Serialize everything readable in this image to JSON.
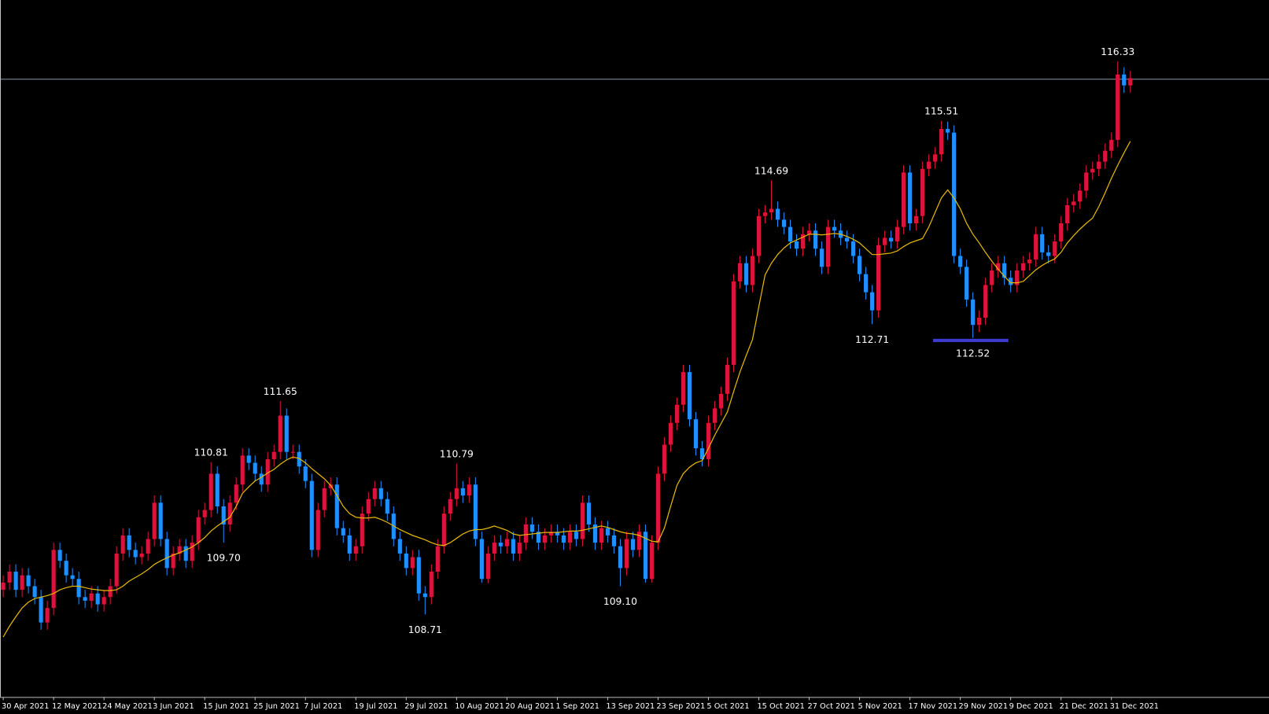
{
  "chart_data": {
    "type": "candlestick",
    "ylim": [
      107.573,
      117.177
    ],
    "up_color": "#dc143c",
    "down_color": "#1e90ff",
    "categories": [
      "30 Apr 2021",
      null,
      null,
      null,
      null,
      null,
      null,
      null,
      "12 May 2021",
      null,
      null,
      null,
      null,
      null,
      null,
      null,
      "24 May 2021",
      null,
      null,
      null,
      null,
      null,
      null,
      null,
      "3 Jun 2021",
      null,
      null,
      null,
      null,
      null,
      null,
      null,
      "15 Jun 2021",
      null,
      null,
      null,
      null,
      null,
      null,
      null,
      "25 Jun 2021",
      null,
      null,
      null,
      null,
      null,
      null,
      null,
      "7 Jul 2021",
      null,
      null,
      null,
      null,
      null,
      null,
      null,
      "19 Jul 2021",
      null,
      null,
      null,
      null,
      null,
      null,
      null,
      "29 Jul 2021",
      null,
      null,
      null,
      null,
      null,
      null,
      null,
      "10 Aug 2021",
      null,
      null,
      null,
      null,
      null,
      null,
      null,
      "20 Aug 2021",
      null,
      null,
      null,
      null,
      null,
      null,
      null,
      "1 Sep 2021",
      null,
      null,
      null,
      null,
      null,
      null,
      null,
      "13 Sep 2021",
      null,
      null,
      null,
      null,
      null,
      null,
      null,
      "23 Sep 2021",
      null,
      null,
      null,
      null,
      null,
      null,
      null,
      "5 Oct 2021",
      null,
      null,
      null,
      null,
      null,
      null,
      null,
      "15 Oct 2021",
      null,
      null,
      null,
      null,
      null,
      null,
      null,
      "27 Oct 2021",
      null,
      null,
      null,
      null,
      null,
      null,
      null,
      "5 Nov 2021",
      null,
      null,
      null,
      null,
      null,
      null,
      null,
      "17 Nov 2021",
      null,
      null,
      null,
      null,
      null,
      null,
      null,
      "29 Nov 2021",
      null,
      null,
      null,
      null,
      null,
      null,
      null,
      "9 Dec 2021",
      null,
      null,
      null,
      null,
      null,
      null,
      null,
      "21 Dec 2021",
      null,
      null,
      null,
      null,
      null,
      null,
      null,
      "31 Dec 2021",
      null,
      null,
      null
    ],
    "open": [
      109.05,
      109.15,
      109.3,
      109.05,
      109.25,
      109.1,
      108.95,
      108.6,
      108.8,
      109.6,
      109.45,
      109.25,
      109.2,
      108.95,
      108.9,
      109.0,
      108.85,
      108.95,
      109.1,
      109.55,
      109.8,
      109.6,
      109.5,
      109.55,
      109.75,
      110.25,
      109.75,
      109.35,
      109.55,
      109.65,
      109.45,
      109.7,
      110.05,
      110.15,
      110.65,
      110.2,
      109.95,
      110.25,
      110.5,
      110.9,
      110.8,
      110.65,
      110.5,
      110.85,
      110.95,
      111.45,
      110.95,
      110.95,
      110.75,
      110.55,
      109.6,
      110.15,
      110.45,
      110.5,
      109.9,
      109.8,
      109.55,
      109.65,
      110.1,
      110.3,
      110.45,
      110.3,
      110.1,
      109.75,
      109.55,
      109.35,
      109.5,
      109.0,
      108.95,
      109.3,
      109.65,
      110.1,
      110.3,
      110.45,
      110.35,
      110.5,
      109.75,
      109.2,
      109.55,
      109.7,
      109.65,
      109.75,
      109.55,
      109.7,
      109.95,
      109.85,
      109.7,
      109.8,
      109.85,
      109.8,
      109.7,
      109.85,
      109.75,
      110.25,
      109.95,
      109.7,
      109.9,
      109.8,
      109.65,
      109.35,
      109.75,
      109.6,
      109.85,
      109.2,
      109.7,
      110.65,
      111.05,
      111.35,
      111.6,
      112.05,
      111.4,
      111.0,
      110.85,
      111.35,
      111.55,
      111.75,
      112.15,
      113.3,
      113.55,
      113.25,
      113.65,
      114.2,
      114.25,
      114.3,
      114.15,
      114.05,
      113.85,
      113.75,
      113.95,
      114.0,
      113.75,
      113.5,
      114.05,
      114.0,
      113.9,
      113.85,
      113.65,
      113.4,
      113.15,
      112.9,
      113.8,
      113.9,
      113.85,
      114.05,
      114.8,
      114.1,
      114.2,
      114.85,
      114.95,
      115.05,
      115.4,
      115.35,
      113.65,
      113.5,
      113.05,
      112.7,
      112.8,
      113.25,
      113.45,
      113.55,
      113.35,
      113.25,
      113.45,
      113.55,
      113.6,
      113.95,
      113.7,
      113.65,
      113.85,
      114.1,
      114.35,
      114.4,
      114.55,
      114.8,
      114.85,
      114.95,
      115.1,
      115.25,
      116.15,
      116.0
    ],
    "high": [
      109.25,
      109.4,
      109.4,
      109.35,
      109.35,
      109.2,
      109.05,
      108.9,
      109.7,
      109.7,
      109.55,
      109.35,
      109.3,
      109.05,
      109.1,
      109.1,
      109.05,
      109.2,
      109.65,
      109.9,
      109.9,
      109.7,
      109.65,
      109.85,
      110.35,
      110.35,
      109.85,
      109.65,
      109.75,
      109.75,
      109.8,
      110.15,
      110.25,
      110.81,
      110.75,
      110.3,
      110.35,
      110.6,
      111.0,
      111.0,
      110.9,
      110.75,
      110.95,
      111.05,
      111.65,
      111.55,
      111.05,
      111.05,
      110.85,
      110.65,
      110.25,
      110.55,
      110.6,
      110.6,
      110.0,
      109.9,
      109.75,
      110.2,
      110.4,
      110.55,
      110.55,
      110.4,
      110.2,
      109.85,
      109.65,
      109.6,
      109.6,
      109.1,
      109.4,
      109.75,
      110.2,
      110.4,
      110.79,
      110.55,
      110.6,
      110.6,
      109.85,
      109.65,
      109.8,
      109.8,
      109.85,
      109.85,
      109.8,
      110.05,
      110.05,
      109.95,
      109.9,
      109.95,
      109.95,
      109.9,
      109.95,
      109.95,
      110.35,
      110.35,
      110.05,
      110.0,
      110.0,
      109.9,
      109.75,
      109.85,
      109.85,
      109.95,
      109.95,
      109.8,
      110.75,
      111.15,
      111.45,
      111.7,
      112.15,
      112.15,
      111.5,
      111.1,
      111.45,
      111.65,
      111.85,
      112.25,
      113.4,
      113.65,
      113.65,
      113.75,
      114.3,
      114.35,
      114.69,
      114.4,
      114.25,
      114.15,
      113.95,
      114.05,
      114.1,
      114.1,
      113.85,
      114.15,
      114.15,
      114.1,
      114.0,
      113.95,
      113.75,
      113.5,
      113.25,
      113.9,
      114.0,
      114.0,
      114.15,
      114.9,
      114.9,
      114.3,
      114.95,
      115.05,
      115.15,
      115.51,
      115.5,
      115.45,
      113.75,
      113.6,
      113.15,
      112.9,
      113.35,
      113.55,
      113.65,
      113.65,
      113.45,
      113.55,
      113.65,
      113.7,
      114.05,
      114.05,
      113.8,
      113.95,
      114.2,
      114.45,
      114.5,
      114.65,
      114.9,
      114.95,
      115.05,
      115.2,
      115.35,
      116.33,
      116.25,
      116.2
    ],
    "low": [
      108.95,
      109.05,
      108.95,
      108.95,
      109.0,
      108.85,
      108.5,
      108.5,
      108.7,
      109.35,
      109.15,
      109.1,
      108.85,
      108.8,
      108.8,
      108.75,
      108.75,
      108.85,
      109.0,
      109.45,
      109.5,
      109.4,
      109.4,
      109.45,
      109.65,
      109.65,
      109.25,
      109.25,
      109.45,
      109.35,
      109.35,
      109.6,
      109.95,
      110.05,
      110.1,
      109.7,
      109.85,
      110.15,
      110.4,
      110.7,
      110.55,
      110.4,
      110.4,
      110.75,
      110.85,
      110.85,
      110.85,
      110.65,
      110.45,
      109.5,
      109.5,
      110.05,
      110.35,
      109.8,
      109.7,
      109.45,
      109.45,
      109.55,
      110.0,
      110.2,
      110.2,
      110.0,
      109.65,
      109.45,
      109.25,
      109.25,
      108.9,
      108.71,
      108.85,
      109.2,
      109.55,
      110.0,
      110.2,
      110.25,
      110.25,
      109.65,
      109.15,
      109.14,
      109.45,
      109.55,
      109.55,
      109.45,
      109.45,
      109.6,
      109.75,
      109.6,
      109.6,
      109.7,
      109.7,
      109.6,
      109.6,
      109.65,
      109.65,
      109.85,
      109.6,
      109.6,
      109.7,
      109.55,
      109.1,
      109.25,
      109.5,
      109.5,
      109.15,
      109.15,
      109.6,
      110.55,
      110.95,
      111.25,
      111.5,
      111.3,
      110.9,
      110.75,
      110.75,
      111.25,
      111.45,
      111.65,
      112.05,
      113.2,
      113.15,
      113.15,
      113.55,
      114.1,
      114.15,
      114.05,
      113.95,
      113.75,
      113.65,
      113.65,
      113.85,
      113.65,
      113.4,
      113.4,
      113.9,
      113.8,
      113.75,
      113.55,
      113.3,
      113.05,
      112.71,
      112.8,
      113.7,
      113.75,
      113.75,
      113.95,
      114.0,
      114.0,
      114.1,
      114.75,
      114.85,
      114.95,
      115.25,
      113.55,
      113.4,
      112.95,
      112.52,
      112.6,
      112.7,
      113.15,
      113.35,
      113.25,
      113.15,
      113.15,
      113.35,
      113.45,
      113.5,
      113.6,
      113.55,
      113.55,
      113.75,
      114.0,
      114.25,
      114.3,
      114.45,
      114.7,
      114.75,
      114.85,
      115.0,
      115.15,
      115.9,
      115.9
    ],
    "close": [
      109.15,
      109.3,
      109.05,
      109.25,
      109.1,
      108.95,
      108.6,
      108.8,
      109.6,
      109.45,
      109.25,
      109.2,
      108.95,
      108.9,
      109.0,
      108.85,
      108.95,
      109.1,
      109.55,
      109.8,
      109.6,
      109.5,
      109.55,
      109.75,
      110.25,
      109.75,
      109.35,
      109.55,
      109.65,
      109.45,
      109.7,
      110.05,
      110.15,
      110.65,
      110.2,
      109.95,
      110.25,
      110.5,
      110.9,
      110.8,
      110.65,
      110.5,
      110.85,
      110.95,
      111.45,
      110.95,
      110.95,
      110.75,
      110.55,
      109.6,
      110.15,
      110.45,
      110.5,
      109.9,
      109.8,
      109.55,
      109.65,
      110.1,
      110.3,
      110.45,
      110.3,
      110.1,
      109.75,
      109.55,
      109.35,
      109.5,
      109.0,
      108.95,
      109.3,
      109.65,
      110.1,
      110.3,
      110.45,
      110.35,
      110.5,
      109.75,
      109.2,
      109.55,
      109.7,
      109.65,
      109.75,
      109.55,
      109.7,
      109.95,
      109.85,
      109.7,
      109.8,
      109.85,
      109.8,
      109.7,
      109.85,
      109.75,
      110.25,
      109.95,
      109.7,
      109.9,
      109.8,
      109.65,
      109.35,
      109.75,
      109.6,
      109.85,
      109.2,
      109.7,
      110.65,
      111.05,
      111.35,
      111.6,
      112.05,
      111.4,
      111.0,
      110.85,
      111.35,
      111.55,
      111.75,
      112.15,
      113.3,
      113.55,
      113.25,
      113.65,
      114.2,
      114.25,
      114.3,
      114.15,
      114.05,
      113.85,
      113.75,
      113.95,
      114.0,
      113.75,
      113.5,
      114.05,
      114.0,
      113.9,
      113.85,
      113.65,
      113.4,
      113.15,
      112.9,
      113.8,
      113.9,
      113.85,
      114.05,
      114.8,
      114.1,
      114.2,
      114.85,
      114.95,
      115.05,
      115.4,
      115.35,
      113.65,
      113.5,
      113.05,
      112.7,
      112.8,
      113.25,
      113.45,
      113.55,
      113.35,
      113.25,
      113.45,
      113.55,
      113.6,
      113.95,
      113.7,
      113.65,
      113.85,
      114.1,
      114.35,
      114.4,
      114.55,
      114.8,
      114.85,
      114.95,
      115.1,
      115.25,
      116.15,
      116.0,
      116.1
    ],
    "high_labels": [
      null,
      null,
      null,
      null,
      null,
      null,
      null,
      null,
      null,
      null,
      null,
      null,
      null,
      null,
      null,
      null,
      null,
      null,
      null,
      null,
      null,
      null,
      null,
      null,
      null,
      null,
      null,
      null,
      null,
      null,
      null,
      null,
      null,
      "110.81",
      null,
      null,
      null,
      null,
      null,
      null,
      null,
      null,
      null,
      null,
      "111.65",
      null,
      null,
      null,
      null,
      null,
      null,
      null,
      null,
      null,
      null,
      null,
      null,
      null,
      null,
      null,
      null,
      null,
      null,
      null,
      null,
      null,
      null,
      null,
      null,
      null,
      null,
      null,
      "110.79",
      null,
      null,
      null,
      null,
      null,
      null,
      null,
      null,
      null,
      null,
      null,
      null,
      null,
      null,
      null,
      null,
      null,
      null,
      null,
      null,
      null,
      null,
      null,
      null,
      null,
      null,
      null,
      null,
      null,
      null,
      null,
      null,
      null,
      null,
      null,
      null,
      null,
      null,
      null,
      null,
      null,
      null,
      null,
      null,
      null,
      null,
      null,
      null,
      null,
      "114.69",
      null,
      null,
      null,
      null,
      null,
      null,
      null,
      null,
      null,
      null,
      null,
      null,
      null,
      null,
      null,
      null,
      null,
      null,
      null,
      null,
      null,
      null,
      null,
      null,
      null,
      null,
      "115.51",
      null,
      null,
      null,
      null,
      null,
      null,
      null,
      null,
      null,
      null,
      null,
      null,
      null,
      null,
      null,
      null,
      null,
      null,
      null,
      null,
      null,
      null,
      null,
      null,
      null,
      null,
      null,
      "116.33",
      null,
      null
    ],
    "low_labels": [
      null,
      null,
      null,
      null,
      null,
      null,
      null,
      null,
      null,
      null,
      null,
      null,
      null,
      null,
      null,
      null,
      null,
      null,
      null,
      null,
      null,
      null,
      null,
      null,
      null,
      null,
      null,
      null,
      null,
      null,
      null,
      null,
      null,
      null,
      null,
      "109.70",
      null,
      null,
      null,
      null,
      null,
      null,
      null,
      null,
      null,
      null,
      null,
      null,
      null,
      null,
      null,
      null,
      null,
      null,
      null,
      null,
      null,
      null,
      null,
      null,
      null,
      null,
      null,
      null,
      null,
      null,
      null,
      "108.71",
      null,
      null,
      null,
      null,
      null,
      null,
      null,
      null,
      null,
      null,
      null,
      null,
      null,
      null,
      null,
      null,
      null,
      null,
      null,
      null,
      null,
      null,
      null,
      null,
      null,
      null,
      null,
      null,
      null,
      null,
      "109.10",
      null,
      null,
      null,
      null,
      null,
      null,
      null,
      null,
      null,
      null,
      null,
      null,
      null,
      null,
      null,
      null,
      null,
      null,
      null,
      null,
      null,
      null,
      null,
      null,
      null,
      null,
      null,
      null,
      null,
      null,
      null,
      null,
      null,
      null,
      null,
      null,
      null,
      null,
      null,
      "112.71",
      null,
      null,
      null,
      null,
      null,
      null,
      null,
      null,
      null,
      null,
      null,
      null,
      null,
      null,
      null,
      "112.52",
      null,
      null,
      null,
      null,
      null,
      null,
      null,
      null,
      null,
      null,
      null,
      null,
      null,
      null,
      null,
      null,
      null,
      null,
      null,
      null,
      null,
      null,
      null,
      null,
      null
    ],
    "ma": {
      "color": "#e6b800",
      "values": [
        108.4,
        108.55,
        108.68,
        108.8,
        108.88,
        108.93,
        108.95,
        108.97,
        109.0,
        109.05,
        109.08,
        109.1,
        109.1,
        109.08,
        109.06,
        109.05,
        109.04,
        109.04,
        109.05,
        109.1,
        109.17,
        109.22,
        109.27,
        109.33,
        109.4,
        109.45,
        109.49,
        109.53,
        109.56,
        109.6,
        109.64,
        109.7,
        109.77,
        109.86,
        109.93,
        109.99,
        110.05,
        110.2,
        110.38,
        110.47,
        110.55,
        110.6,
        110.66,
        110.71,
        110.78,
        110.84,
        110.88,
        110.86,
        110.8,
        110.72,
        110.65,
        110.58,
        110.49,
        110.35,
        110.2,
        110.1,
        110.05,
        110.04,
        110.04,
        110.05,
        110.02,
        109.98,
        109.93,
        109.88,
        109.84,
        109.8,
        109.77,
        109.74,
        109.7,
        109.67,
        109.66,
        109.7,
        109.76,
        109.82,
        109.86,
        109.88,
        109.88,
        109.9,
        109.93,
        109.9,
        109.87,
        109.82,
        109.8,
        109.81,
        109.82,
        109.83,
        109.84,
        109.84,
        109.84,
        109.85,
        109.86,
        109.86,
        109.87,
        109.89,
        109.91,
        109.93,
        109.91,
        109.88,
        109.85,
        109.83,
        109.82,
        109.8,
        109.76,
        109.72,
        109.71,
        109.9,
        110.2,
        110.49,
        110.65,
        110.74,
        110.8,
        110.83,
        111.0,
        111.18,
        111.34,
        111.5,
        111.78,
        112.05,
        112.28,
        112.5,
        112.95,
        113.39,
        113.55,
        113.67,
        113.76,
        113.83,
        113.87,
        113.91,
        113.95,
        113.95,
        113.94,
        113.95,
        113.96,
        113.95,
        113.92,
        113.88,
        113.83,
        113.75,
        113.67,
        113.67,
        113.68,
        113.69,
        113.72,
        113.78,
        113.83,
        113.86,
        113.89,
        114.05,
        114.25,
        114.45,
        114.56,
        114.45,
        114.3,
        114.1,
        113.95,
        113.83,
        113.7,
        113.58,
        113.47,
        113.37,
        113.28,
        113.28,
        113.3,
        113.38,
        113.46,
        113.52,
        113.57,
        113.61,
        113.7,
        113.83,
        113.93,
        114.02,
        114.1,
        114.17,
        114.33,
        114.52,
        114.72,
        114.9,
        115.07,
        115.23
      ]
    }
  }
}
